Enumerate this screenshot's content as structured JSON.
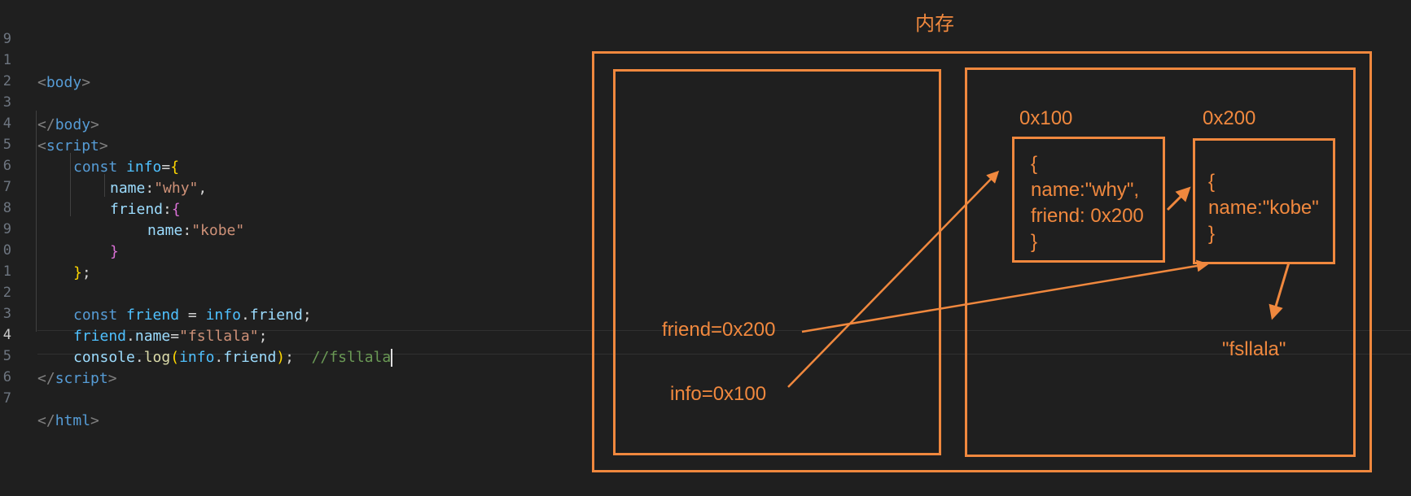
{
  "editor": {
    "line_numbers": [
      "9",
      "1",
      "2",
      "3",
      "4",
      "5",
      "6",
      "7",
      "8",
      "9",
      "0",
      "1",
      "2",
      "3",
      "4",
      "5",
      "6",
      "7"
    ],
    "active_line_index": 15,
    "tokens": {
      "lt": "<",
      "gt": ">",
      "lt_slash": "</",
      "body": "body",
      "script": "script",
      "html": "html",
      "const": "const",
      "info": "info",
      "eq": "=",
      "lbrace": "{",
      "rbrace": "}",
      "name": "name",
      "friend": "friend",
      "colon": ":",
      "why": "\"why\"",
      "comma": ",",
      "kobe": "\"kobe\"",
      "semi": ";",
      "eq_spaced": " = ",
      "dot": ".",
      "fsllala_str": "\"fsllala\"",
      "console": "console",
      "log": "log",
      "lparen": "(",
      "rparen": ")",
      "comment": "//fsllala"
    }
  },
  "diagram": {
    "title": "内存",
    "labels": {
      "addr_info": "0x100",
      "addr_friend": "0x200",
      "friend_var": "friend=0x200",
      "info_var": "info=0x100",
      "fsllala_value": "\"fsllala\""
    },
    "obj_info_lines": [
      "{",
      "name:\"why\",",
      "friend: 0x200",
      "}"
    ],
    "obj_friend_lines": [
      "{",
      "name:\"kobe\"",
      "}"
    ],
    "accent_color": "#f0883e"
  }
}
